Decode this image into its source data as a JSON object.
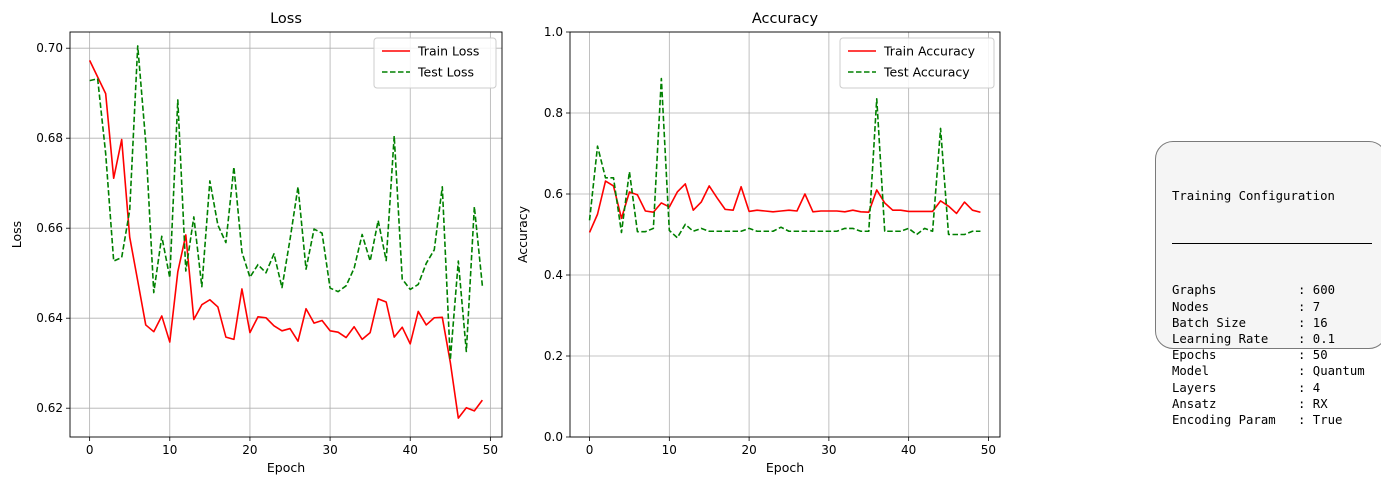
{
  "chart_data": [
    {
      "type": "line",
      "title": "Loss",
      "xlabel": "Epoch",
      "ylabel": "Loss",
      "xlim": [
        -2.45,
        51.45
      ],
      "ylim": [
        0.6136,
        0.7036
      ],
      "xticks": [
        0,
        10,
        20,
        30,
        40,
        50
      ],
      "yticks": [
        0.62,
        0.64,
        0.66,
        0.68,
        0.7
      ],
      "ytick_labels": [
        "0.62",
        "0.64",
        "0.66",
        "0.68",
        "0.70"
      ],
      "grid": true,
      "legend": "top-right",
      "x": [
        0,
        1,
        2,
        3,
        4,
        5,
        6,
        7,
        8,
        9,
        10,
        11,
        12,
        13,
        14,
        15,
        16,
        17,
        18,
        19,
        20,
        21,
        22,
        23,
        24,
        25,
        26,
        27,
        28,
        29,
        30,
        31,
        32,
        33,
        34,
        35,
        36,
        37,
        38,
        39,
        40,
        41,
        42,
        43,
        44,
        45,
        46,
        47,
        48,
        49
      ],
      "series": [
        {
          "name": "Train Loss",
          "color": "#ff0000",
          "style": "solid",
          "values": [
            0.6973,
            0.6936,
            0.6899,
            0.6711,
            0.6797,
            0.658,
            0.6483,
            0.6385,
            0.637,
            0.6405,
            0.6347,
            0.6503,
            0.6585,
            0.6397,
            0.643,
            0.6441,
            0.6425,
            0.6358,
            0.6353,
            0.6465,
            0.6368,
            0.6403,
            0.6401,
            0.6383,
            0.6372,
            0.6377,
            0.6349,
            0.6421,
            0.6389,
            0.6395,
            0.6372,
            0.6369,
            0.6357,
            0.6381,
            0.6353,
            0.6368,
            0.6443,
            0.6436,
            0.6358,
            0.638,
            0.6343,
            0.6415,
            0.6385,
            0.6401,
            0.6402,
            0.6302,
            0.6178,
            0.6201,
            0.6194,
            0.6218
          ]
        },
        {
          "name": "Test Loss",
          "color": "#008000",
          "style": "dashed",
          "values": [
            0.6928,
            0.6932,
            0.6766,
            0.6527,
            0.6535,
            0.664,
            0.7005,
            0.6791,
            0.6457,
            0.6582,
            0.649,
            0.6885,
            0.6505,
            0.6625,
            0.647,
            0.6705,
            0.6607,
            0.6568,
            0.6736,
            0.6547,
            0.6491,
            0.6519,
            0.6501,
            0.6543,
            0.6468,
            0.6575,
            0.6692,
            0.6509,
            0.6598,
            0.6589,
            0.6467,
            0.6459,
            0.6472,
            0.6511,
            0.6586,
            0.6527,
            0.6617,
            0.6528,
            0.6805,
            0.6487,
            0.6464,
            0.6475,
            0.6522,
            0.6552,
            0.6692,
            0.6307,
            0.6527,
            0.6326,
            0.6648,
            0.6472
          ]
        }
      ]
    },
    {
      "type": "line",
      "title": "Accuracy",
      "xlabel": "Epoch",
      "ylabel": "Accuracy",
      "xlim": [
        -2.45,
        51.45
      ],
      "ylim": [
        0.0,
        1.0
      ],
      "xticks": [
        0,
        10,
        20,
        30,
        40,
        50
      ],
      "yticks": [
        0.0,
        0.2,
        0.4,
        0.6,
        0.8,
        1.0
      ],
      "ytick_labels": [
        "0.0",
        "0.2",
        "0.4",
        "0.6",
        "0.8",
        "1.0"
      ],
      "grid": true,
      "legend": "top-right",
      "x": [
        0,
        1,
        2,
        3,
        4,
        5,
        6,
        7,
        8,
        9,
        10,
        11,
        12,
        13,
        14,
        15,
        16,
        17,
        18,
        19,
        20,
        21,
        22,
        23,
        24,
        25,
        26,
        27,
        28,
        29,
        30,
        31,
        32,
        33,
        34,
        35,
        36,
        37,
        38,
        39,
        40,
        41,
        42,
        43,
        44,
        45,
        46,
        47,
        48,
        49
      ],
      "series": [
        {
          "name": "Train Accuracy",
          "color": "#ff0000",
          "style": "solid",
          "values": [
            0.505,
            0.55,
            0.632,
            0.62,
            0.54,
            0.605,
            0.598,
            0.558,
            0.555,
            0.578,
            0.568,
            0.605,
            0.625,
            0.56,
            0.58,
            0.62,
            0.59,
            0.562,
            0.56,
            0.618,
            0.557,
            0.56,
            0.558,
            0.556,
            0.558,
            0.56,
            0.558,
            0.6,
            0.556,
            0.558,
            0.558,
            0.558,
            0.556,
            0.56,
            0.556,
            0.555,
            0.61,
            0.578,
            0.56,
            0.56,
            0.557,
            0.557,
            0.557,
            0.557,
            0.583,
            0.57,
            0.552,
            0.58,
            0.56,
            0.555
          ]
        },
        {
          "name": "Test Accuracy",
          "color": "#008000",
          "style": "dashed",
          "values": [
            0.535,
            0.718,
            0.64,
            0.64,
            0.505,
            0.655,
            0.507,
            0.507,
            0.515,
            0.885,
            0.51,
            0.492,
            0.525,
            0.508,
            0.515,
            0.508,
            0.508,
            0.508,
            0.508,
            0.508,
            0.515,
            0.508,
            0.508,
            0.508,
            0.518,
            0.508,
            0.508,
            0.508,
            0.508,
            0.508,
            0.508,
            0.508,
            0.515,
            0.515,
            0.508,
            0.508,
            0.835,
            0.508,
            0.508,
            0.508,
            0.515,
            0.5,
            0.515,
            0.508,
            0.762,
            0.5,
            0.5,
            0.5,
            0.508,
            0.508
          ]
        }
      ]
    }
  ],
  "config": {
    "title": "Training Configuration",
    "rows": [
      {
        "key": "Graphs",
        "value": ": 600"
      },
      {
        "key": "Nodes",
        "value": ": 7"
      },
      {
        "key": "Batch Size",
        "value": ": 16"
      },
      {
        "key": "Learning Rate",
        "value": ": 0.1"
      },
      {
        "key": "Epochs",
        "value": ": 50"
      },
      {
        "key": "Model",
        "value": ": Quantum"
      },
      {
        "key": "Layers",
        "value": ": 4"
      },
      {
        "key": "Ansatz",
        "value": ": RX"
      },
      {
        "key": "Encoding Param",
        "value": ": True"
      }
    ]
  }
}
